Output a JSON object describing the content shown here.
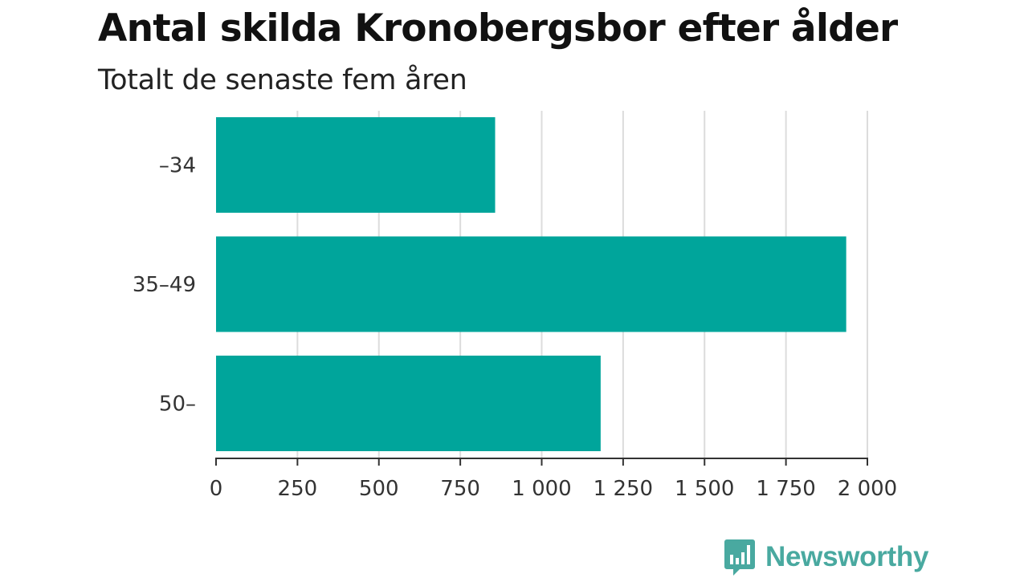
{
  "chart_data": {
    "type": "bar",
    "orientation": "horizontal",
    "title": "Antal skilda Kronobergsbor efter ålder",
    "subtitle": "Totalt de senaste fem åren",
    "categories": [
      "–34",
      "35–49",
      "50–"
    ],
    "values": [
      857,
      1935,
      1181
    ],
    "xlim": [
      0,
      2000
    ],
    "xticks": [
      0,
      250,
      500,
      750,
      1000,
      1250,
      1500,
      1750,
      2000
    ],
    "xtick_labels": [
      "0",
      "250",
      "500",
      "750",
      "1 000",
      "1 250",
      "1 500",
      "1 750",
      "2 000"
    ],
    "grid": "vertical",
    "bar_color": "#00a59b"
  },
  "brand": {
    "name": "Newsworthy",
    "color": "#49a9a0",
    "icon": "bar-chart-speech-bubble-icon"
  }
}
